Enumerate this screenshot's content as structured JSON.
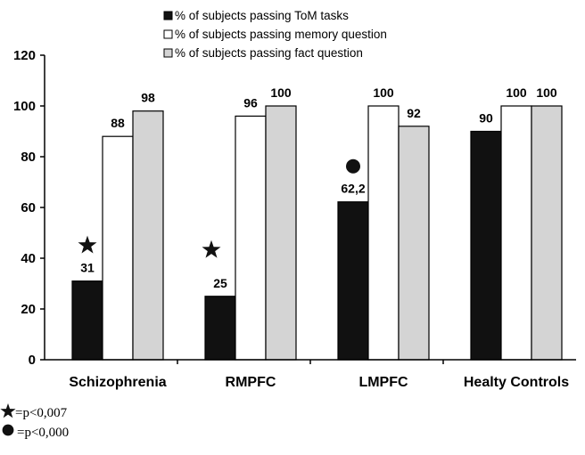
{
  "chart_data": {
    "type": "bar",
    "categories": [
      "Schizophrenia",
      "RMPFC",
      "LMPFC",
      "Healty Controls"
    ],
    "series": [
      {
        "name": "% of subjects passing  ToM tasks",
        "values": [
          31,
          25,
          62.2,
          90
        ],
        "labels": [
          "31",
          "25",
          "62,2",
          "90"
        ],
        "color": "#111111"
      },
      {
        "name": "% of subjects passing  memory question",
        "values": [
          88,
          96,
          100,
          100
        ],
        "labels": [
          "88",
          "96",
          "100",
          "100"
        ],
        "color": "#ffffff"
      },
      {
        "name": "% of subjects passing fact question",
        "values": [
          98,
          100,
          92,
          100
        ],
        "labels": [
          "98",
          "100",
          "92",
          "100"
        ],
        "color": "#d4d4d4"
      }
    ],
    "ylim": [
      0,
      120
    ],
    "yticks": [
      0,
      20,
      40,
      60,
      80,
      100,
      120
    ],
    "grid": false,
    "legend_position": "top-center",
    "title": "",
    "xlabel": "",
    "ylabel": "",
    "markers": [
      {
        "category": "Schizophrenia",
        "symbol": "star"
      },
      {
        "category": "RMPFC",
        "symbol": "star"
      },
      {
        "category": "LMPFC",
        "symbol": "circle"
      }
    ],
    "annotations": [
      {
        "symbol": "star",
        "text": "=p<0,007"
      },
      {
        "symbol": "circle",
        "text": "=p<0,000"
      }
    ]
  }
}
